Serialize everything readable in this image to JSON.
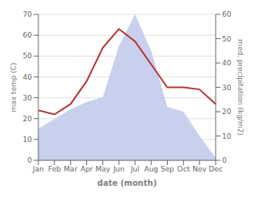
{
  "chart_data": {
    "type": "line",
    "categories": [
      "Jan",
      "Feb",
      "Mar",
      "Apr",
      "May",
      "Jun",
      "Jul",
      "Aug",
      "Sep",
      "Oct",
      "Nov",
      "Dec"
    ],
    "series": [
      {
        "type": "area",
        "color": "#c8d0ee",
        "axis": "y2",
        "values": [
          13,
          17,
          21,
          24,
          26,
          47,
          60,
          45,
          22,
          20,
          10,
          1
        ]
      },
      {
        "type": "line",
        "color": "#b83232",
        "values": [
          24,
          22,
          27,
          38,
          54,
          63,
          57,
          46,
          35,
          35,
          34,
          27
        ]
      }
    ],
    "xlabel": "date (month)",
    "ylabel": "max temp (C)",
    "y2label": "med. precipitation (kg/m2)",
    "ylim": [
      0,
      70
    ],
    "yticks": [
      0,
      10,
      20,
      30,
      40,
      50,
      60,
      70
    ],
    "y2lim": [
      0,
      60
    ],
    "y2ticks": [
      0,
      10,
      20,
      30,
      40,
      50,
      60
    ],
    "grid": true
  }
}
